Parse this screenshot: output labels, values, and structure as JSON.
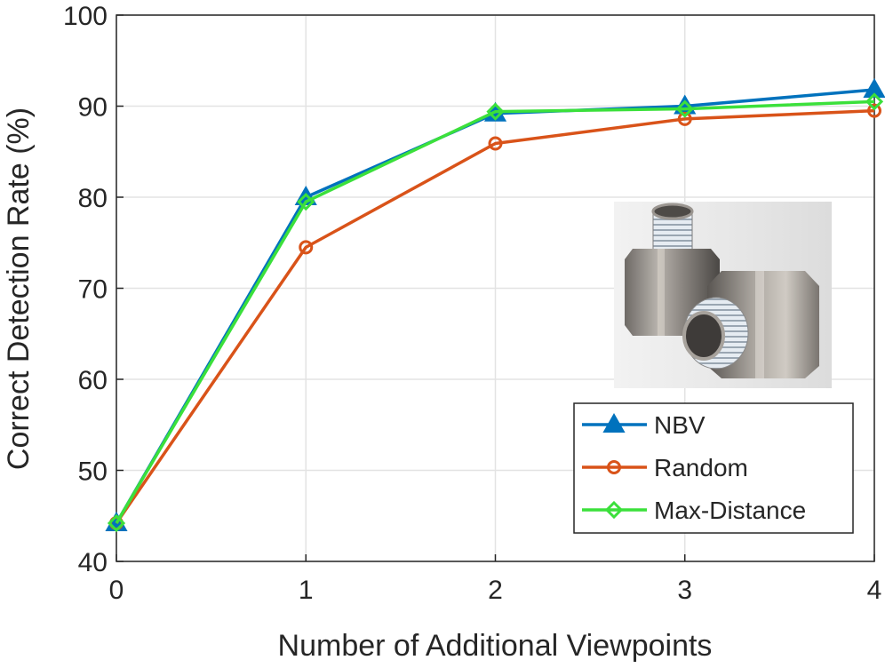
{
  "chart_data": {
    "type": "line",
    "xlabel": "Number of Additional Viewpoints",
    "ylabel": "Correct Detection Rate (%)",
    "x": [
      0,
      1,
      2,
      3,
      4
    ],
    "xlim": [
      0,
      4
    ],
    "ylim": [
      40,
      100
    ],
    "xticks": [
      "0",
      "1",
      "2",
      "3",
      "4"
    ],
    "yticks": [
      "40",
      "50",
      "60",
      "70",
      "80",
      "90",
      "100"
    ],
    "grid": true,
    "legend_position": "bottom-right",
    "series": [
      {
        "name": "NBV",
        "values": [
          44.2,
          80.0,
          89.2,
          90.0,
          91.8
        ],
        "color": "#0072BD",
        "marker": "triangle"
      },
      {
        "name": "Random",
        "values": [
          44.2,
          74.5,
          85.9,
          88.6,
          89.5
        ],
        "color": "#D95319",
        "marker": "circle"
      },
      {
        "name": "Max-Distance",
        "values": [
          44.2,
          79.5,
          89.4,
          89.7,
          90.5
        ],
        "color": "#3BE03B",
        "marker": "diamond"
      }
    ],
    "inset_image": "photo of two hexagonal metal threaded pipe fittings"
  }
}
